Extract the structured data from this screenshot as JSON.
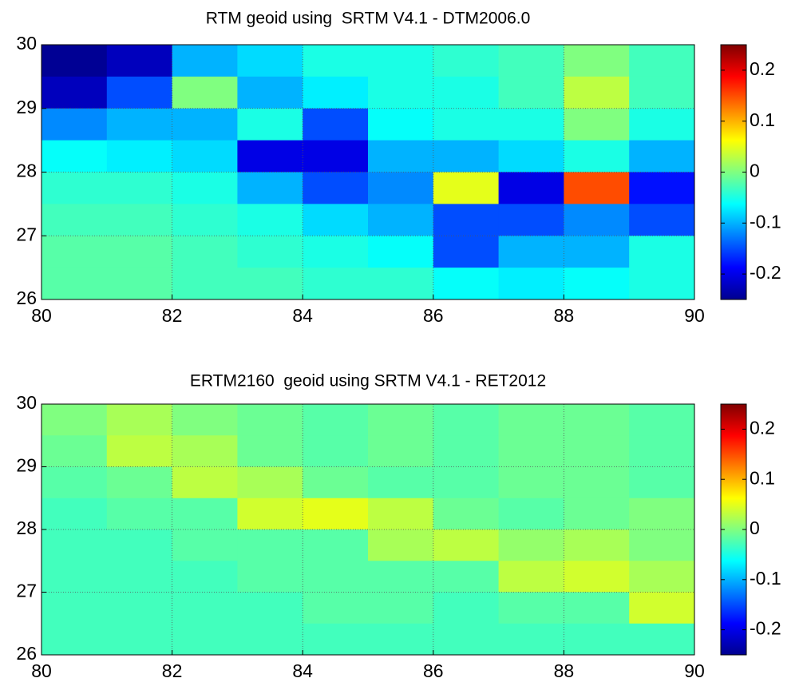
{
  "chart_data": [
    {
      "type": "heatmap",
      "title": "RTM geoid using  SRTM V4.1 - DTM2006.0",
      "colormap": "jet",
      "grid": true,
      "xlim": [
        80,
        90
      ],
      "ylim": [
        26,
        30
      ],
      "xticks": [
        80,
        82,
        84,
        86,
        88,
        90
      ],
      "yticks": [
        26,
        27,
        28,
        29,
        30
      ],
      "clim": [
        -0.25,
        0.25
      ],
      "cticks": [
        -0.2,
        -0.1,
        0,
        0.1,
        0.2
      ],
      "z": [
        [
          -0.24,
          -0.22,
          -0.1,
          -0.08,
          -0.05,
          -0.05,
          -0.04,
          -0.03,
          0.0,
          -0.03
        ],
        [
          -0.22,
          -0.15,
          0.0,
          -0.1,
          -0.07,
          -0.05,
          -0.05,
          -0.03,
          0.03,
          -0.03
        ],
        [
          -0.12,
          -0.1,
          -0.1,
          -0.05,
          -0.15,
          -0.06,
          -0.05,
          -0.05,
          0.0,
          -0.05
        ],
        [
          -0.06,
          -0.07,
          -0.08,
          -0.2,
          -0.2,
          -0.1,
          -0.1,
          -0.08,
          -0.05,
          -0.1
        ],
        [
          -0.04,
          -0.04,
          -0.05,
          -0.1,
          -0.15,
          -0.12,
          0.05,
          -0.2,
          0.15,
          -0.18
        ],
        [
          -0.03,
          -0.03,
          -0.04,
          -0.05,
          -0.08,
          -0.1,
          -0.15,
          -0.15,
          -0.12,
          -0.15
        ],
        [
          -0.02,
          -0.02,
          -0.03,
          -0.04,
          -0.05,
          -0.06,
          -0.15,
          -0.1,
          -0.1,
          -0.05
        ],
        [
          -0.02,
          -0.02,
          -0.03,
          -0.03,
          -0.04,
          -0.04,
          -0.06,
          -0.07,
          -0.06,
          -0.05
        ]
      ]
    },
    {
      "type": "heatmap",
      "title": "ERTM2160  geoid using SRTM V4.1 - RET2012",
      "colormap": "jet",
      "grid": true,
      "xlim": [
        80,
        90
      ],
      "ylim": [
        26,
        30
      ],
      "xticks": [
        80,
        82,
        84,
        86,
        88,
        90
      ],
      "yticks": [
        26,
        27,
        28,
        29,
        30
      ],
      "clim": [
        -0.25,
        0.25
      ],
      "cticks": [
        -0.2,
        -0.1,
        0,
        0.1,
        0.2
      ],
      "z": [
        [
          0.0,
          0.02,
          0.0,
          -0.01,
          -0.02,
          -0.01,
          -0.02,
          -0.01,
          -0.01,
          -0.02
        ],
        [
          -0.01,
          0.03,
          0.02,
          -0.01,
          -0.02,
          -0.01,
          -0.02,
          -0.01,
          -0.01,
          -0.02
        ],
        [
          -0.02,
          -0.01,
          0.03,
          0.02,
          -0.01,
          -0.02,
          -0.02,
          -0.01,
          -0.01,
          -0.02
        ],
        [
          -0.03,
          -0.02,
          -0.02,
          0.04,
          0.05,
          0.03,
          -0.01,
          -0.02,
          -0.01,
          0.0
        ],
        [
          -0.03,
          -0.03,
          -0.02,
          -0.02,
          -0.02,
          0.02,
          0.03,
          0.01,
          0.02,
          0.0
        ],
        [
          -0.03,
          -0.03,
          -0.03,
          -0.02,
          -0.02,
          -0.02,
          -0.02,
          0.03,
          0.04,
          0.02
        ],
        [
          -0.03,
          -0.03,
          -0.03,
          -0.03,
          -0.02,
          -0.02,
          -0.03,
          -0.02,
          -0.02,
          0.04
        ],
        [
          -0.03,
          -0.03,
          -0.03,
          -0.03,
          -0.03,
          -0.03,
          -0.03,
          -0.03,
          -0.03,
          -0.03
        ]
      ]
    }
  ]
}
